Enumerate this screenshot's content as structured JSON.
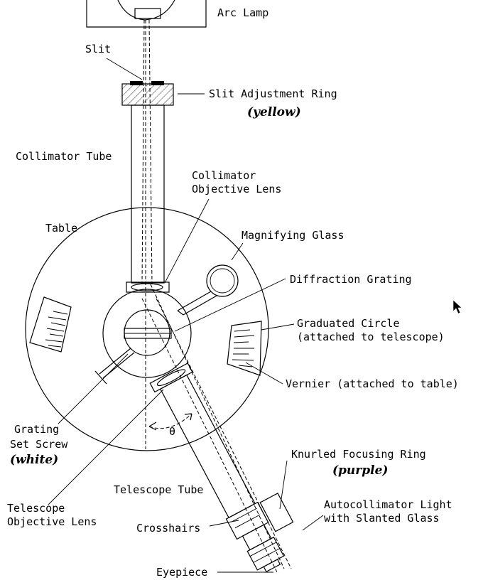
{
  "labels": {
    "arc_lamp": "Arc Lamp",
    "slit": "Slit",
    "slit_ring": "Slit Adjustment Ring",
    "slit_ring_color": "(yellow)",
    "collimator_tube": "Collimator Tube",
    "collimator_lens_1": "Collimator",
    "collimator_lens_2": "Objective Lens",
    "table": "Table",
    "magnifying_glass": "Magnifying Glass",
    "diffraction_grating": "Diffraction Grating",
    "graduated_circle_1": "Graduated Circle",
    "graduated_circle_2": "(attached to telescope)",
    "vernier": "Vernier (attached to table)",
    "set_screw_1": "Grating",
    "set_screw_2": "Set Screw",
    "set_screw_color": "(white)",
    "angle_symbol": "θ",
    "knurled_ring": "Knurled Focusing Ring",
    "knurled_ring_color": "(purple)",
    "telescope_tube": "Telescope Tube",
    "autocollimator_1": "Autocollimator Light",
    "autocollimator_2": "with Slanted Glass",
    "telescope_lens_1": "Telescope",
    "telescope_lens_2": "Objective Lens",
    "crosshairs": "Crosshairs",
    "eyepiece": "Eyepiece"
  }
}
